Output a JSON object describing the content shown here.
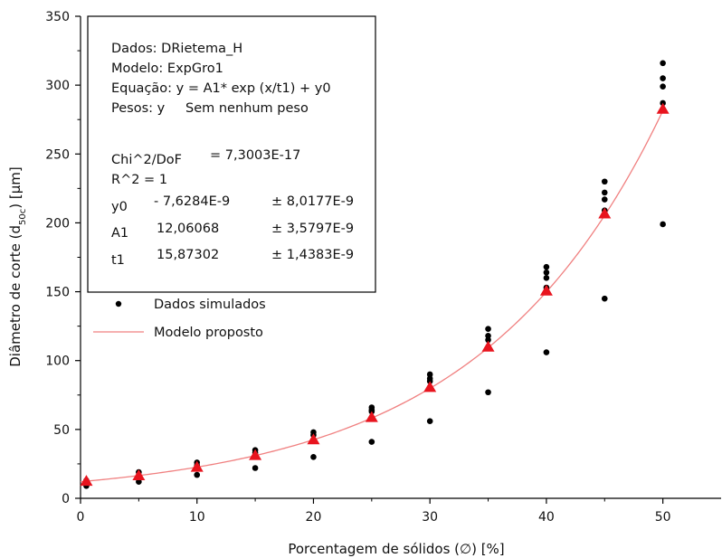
{
  "chart_data": {
    "type": "scatter",
    "xlabel": "Porcentagem de sólidos (∅) [%]",
    "ylabel_parts": [
      "Diâmetro de corte (d",
      "50c",
      ") [μm]"
    ],
    "xlim": [
      0,
      55
    ],
    "ylim": [
      0,
      350
    ],
    "xticks": [
      0,
      10,
      20,
      30,
      40,
      50
    ],
    "yticks": [
      0,
      50,
      100,
      150,
      200,
      250,
      300,
      350
    ],
    "legend": {
      "placement": "top-left",
      "entries": [
        {
          "label": "Dados simulados"
        },
        {
          "label": "Modelo proposto"
        }
      ]
    },
    "fit_info": {
      "dataset": "Dados: DRietema_H",
      "model": "Modelo: ExpGro1",
      "equation": "Equação: y = A1* exp (x/t1) + y0",
      "weights_label": "Pesos: y",
      "weights_value": "Sem nenhum peso",
      "chi2_label": "Chi^2/DoF",
      "chi2_value": "= 7,3003E-17",
      "r2": "R^2 = 1",
      "params": [
        {
          "name": "y0",
          "value": "- 7,6284E-9",
          "error": "± 8,0177E-9"
        },
        {
          "name": "A1",
          "value": "12,06068",
          "error": "± 3,5797E-9"
        },
        {
          "name": "t1",
          "value": "15,87302",
          "error": "± 1,4383E-9"
        }
      ]
    },
    "model": {
      "y0": -7.6284e-09,
      "A1": 12.06068,
      "t1": 15.87302,
      "color": "#f08080"
    },
    "triangle_color": "#e8141e",
    "point_color": "#000000",
    "series": [
      {
        "name": "Dados simulados",
        "x": [
          0.5,
          0.5,
          5,
          5,
          10,
          10,
          10,
          15,
          15,
          15,
          20,
          20,
          20,
          25,
          25,
          25,
          25,
          30,
          30,
          30,
          30,
          35,
          35,
          35,
          35,
          40,
          40,
          40,
          40,
          40,
          45,
          45,
          45,
          45,
          45,
          50,
          50,
          50,
          50,
          50
        ],
        "y": [
          9,
          13,
          12,
          19,
          17,
          24,
          26,
          22,
          33,
          35,
          30,
          46,
          48,
          41,
          63,
          64,
          66,
          56,
          85,
          87,
          90,
          77,
          115,
          118,
          123,
          106,
          153,
          160,
          164,
          168,
          145,
          209,
          217,
          222,
          230,
          199,
          287,
          299,
          305,
          316
        ]
      },
      {
        "name": "Modelo proposto (pontos)",
        "x": [
          0.5,
          5,
          10,
          15,
          20,
          25,
          30,
          35,
          40,
          45,
          50
        ],
        "y": [
          12.4,
          16.4,
          22.6,
          31.1,
          42.5,
          58.7,
          80.5,
          109.8,
          150.5,
          206.5,
          282.5
        ]
      }
    ]
  }
}
